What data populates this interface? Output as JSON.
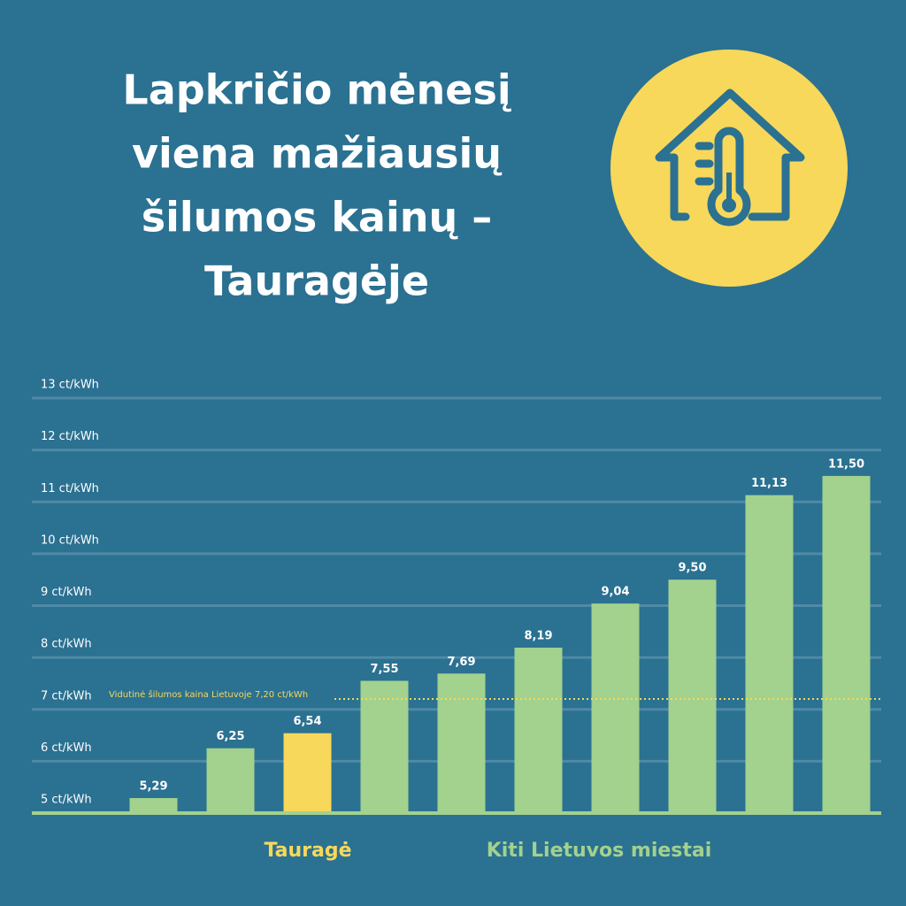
{
  "chart_data": {
    "type": "bar",
    "title": [
      "Lapkričio mėnesį",
      "viena mažiausių",
      "šilumos kainų –",
      "Tauragėje"
    ],
    "categories": [
      null,
      null,
      null,
      null,
      null,
      null,
      null,
      null,
      null,
      null
    ],
    "series": [
      {
        "name": "Tauragė",
        "color": "#f7d85a",
        "values": [
          null,
          null,
          6.54,
          null,
          null,
          null,
          null,
          null,
          null,
          null
        ],
        "value_labels": [
          null,
          null,
          "6,54",
          null,
          null,
          null,
          null,
          null,
          null,
          null
        ]
      },
      {
        "name": "Kiti Lietuvos miestai",
        "color": "#a3d18e",
        "values": [
          5.29,
          6.25,
          null,
          7.55,
          7.69,
          8.19,
          9.04,
          9.5,
          11.13,
          11.5
        ],
        "value_labels": [
          "5,29",
          "6,25",
          null,
          "7,55",
          "7,69",
          "8,19",
          "9,04",
          "9,50",
          "11,13",
          "11,50"
        ]
      }
    ],
    "ylim": [
      5,
      13
    ],
    "yticks": [
      {
        "value": 5,
        "label": "5 ct/kWh"
      },
      {
        "value": 6,
        "label": "6 ct/kWh"
      },
      {
        "value": 7,
        "label": "7 ct/kWh"
      },
      {
        "value": 8,
        "label": "8 ct/kWh"
      },
      {
        "value": 9,
        "label": "9 ct/kWh"
      },
      {
        "value": 10,
        "label": "10 ct/kWh"
      },
      {
        "value": 11,
        "label": "11 ct/kWh"
      },
      {
        "value": 12,
        "label": "12 ct/kWh"
      },
      {
        "value": 13,
        "label": "13 ct/kWh"
      }
    ],
    "grid": true,
    "reference_line": {
      "text": "Vidutinė šilumos kaina Lietuvoje 7,20 ct/kWh",
      "value": 7.2,
      "color": "#f7d85a"
    }
  }
}
